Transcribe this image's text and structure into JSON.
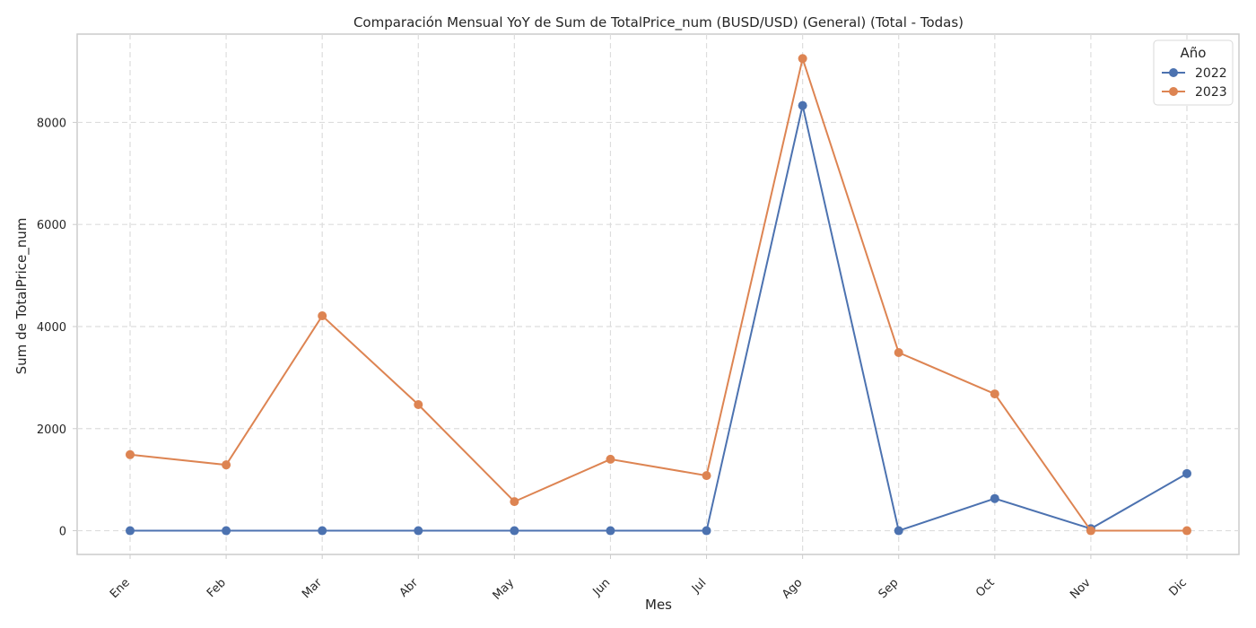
{
  "chart_data": {
    "type": "line",
    "title": "Comparación Mensual YoY de Sum de TotalPrice_num (BUSD/USD) (General) (Total - Todas)",
    "xlabel": "Mes",
    "ylabel": "Sum de TotalPrice_num",
    "categories": [
      "Ene",
      "Feb",
      "Mar",
      "Abr",
      "May",
      "Jun",
      "Jul",
      "Ago",
      "Sep",
      "Oct",
      "Nov",
      "Dic"
    ],
    "ylim": [
      -465,
      9730
    ],
    "yticks": [
      0,
      2000,
      4000,
      6000,
      8000
    ],
    "grid": true,
    "legend": {
      "title": "Año",
      "placement": "top-right"
    },
    "series": [
      {
        "name": "2022",
        "color": "#4c72b0",
        "values": [
          0,
          0,
          0,
          0,
          0,
          0,
          0,
          8330,
          0,
          630,
          40,
          1120
        ]
      },
      {
        "name": "2023",
        "color": "#dd8452",
        "values": [
          1490,
          1290,
          4210,
          2470,
          570,
          1400,
          1080,
          9250,
          3490,
          2680,
          0,
          0
        ]
      }
    ]
  }
}
